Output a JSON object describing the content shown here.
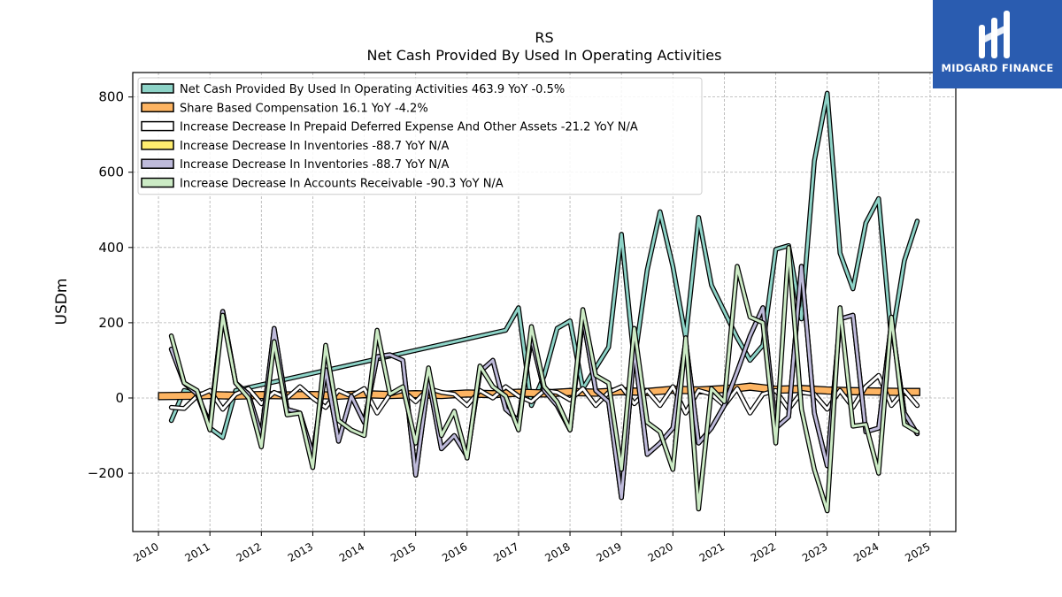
{
  "brand": {
    "name": "MIDGARD FINANCE",
    "logo_icon": "midgard-logo-icon",
    "background": "#2a5cb0"
  },
  "chart_data": {
    "type": "line",
    "title": "RS",
    "subtitle": "Net Cash Provided By Used In Operating Activities",
    "ylabel": "USDm",
    "xlabel": "",
    "xlim": [
      2009.5,
      2025.5
    ],
    "ylim": [
      -355,
      865
    ],
    "x_ticks": [
      2010,
      2011,
      2012,
      2013,
      2014,
      2015,
      2016,
      2017,
      2018,
      2019,
      2020,
      2021,
      2022,
      2023,
      2024,
      2025
    ],
    "x_tick_labels": [
      "2010",
      "2011",
      "2012",
      "2013",
      "2014",
      "2015",
      "2016",
      "2017",
      "2018",
      "2019",
      "2020",
      "2021",
      "2022",
      "2023",
      "2024",
      "2025"
    ],
    "y_ticks": [
      -200,
      0,
      200,
      400,
      600,
      800
    ],
    "y_tick_labels": [
      "−200",
      "0",
      "200",
      "400",
      "600",
      "800"
    ],
    "grid": true,
    "legend_position": "top-left",
    "series": [
      {
        "name": "Net Cash Provided By Used In Operating Activities",
        "legend_label": "Net Cash Provided By Used In Operating Activities  463.9 YoY -0.5%",
        "color": "#8dd3c7",
        "z": 1,
        "x": [
          2010.25,
          2010.5,
          2010.75,
          2011.0,
          2011.25,
          2011.5,
          2016.75,
          2017.0,
          2017.25,
          2017.5,
          2017.75,
          2018.0,
          2018.25,
          2018.5,
          2018.75,
          2019.0,
          2019.25,
          2019.5,
          2019.75,
          2020.0,
          2020.25,
          2020.5,
          2020.75,
          2021.0,
          2021.25,
          2021.5,
          2021.75,
          2022.0,
          2022.25,
          2022.5,
          2022.75,
          2023.0,
          2023.25,
          2023.5,
          2023.75,
          2024.0,
          2024.25,
          2024.5,
          2024.75
        ],
        "y": [
          -60,
          20,
          10,
          -80,
          -105,
          20,
          180,
          240,
          -20,
          60,
          185,
          205,
          25,
          80,
          135,
          435,
          95,
          340,
          495,
          350,
          160,
          480,
          300,
          230,
          160,
          100,
          140,
          395,
          405,
          210,
          630,
          810,
          385,
          290,
          465,
          530,
          155,
          365,
          470
        ]
      },
      {
        "name": "Share Based Compensation",
        "legend_label": "Share Based Compensation  16.1 YoY -4.2%",
        "color": "#fdb462",
        "z": 2,
        "band": true,
        "x": [
          2010.0,
          2010.75,
          2011.0,
          2011.5,
          2012.0,
          2012.5,
          2013.0,
          2013.5,
          2014.0,
          2014.5,
          2015.0,
          2015.5,
          2016.0,
          2016.5,
          2017.0,
          2017.5,
          2018.0,
          2018.5,
          2019.0,
          2019.5,
          2020.0,
          2020.5,
          2021.0,
          2021.25,
          2021.5,
          2021.75,
          2022.0,
          2022.5,
          2023.0,
          2023.5,
          2024.0,
          2024.5,
          2024.8
        ],
        "y": [
          5,
          6,
          8,
          6,
          8,
          7,
          8,
          6,
          10,
          8,
          10,
          8,
          12,
          10,
          14,
          12,
          16,
          14,
          18,
          16,
          22,
          20,
          24,
          26,
          30,
          26,
          22,
          24,
          20,
          18,
          17,
          16,
          16
        ]
      },
      {
        "name": "Increase Decrease In Prepaid Deferred Expense And Other Assets",
        "legend_label": "Increase Decrease In Prepaid Deferred Expense And Other Assets  -21.2 YoY N/A",
        "color": "#ffffff",
        "z": 3,
        "x": [
          2010.25,
          2010.5,
          2010.75,
          2011.0,
          2011.25,
          2011.5,
          2011.75,
          2012.0,
          2012.25,
          2012.5,
          2012.75,
          2013.0,
          2013.25,
          2013.5,
          2013.75,
          2014.0,
          2014.25,
          2014.5,
          2014.75,
          2015.0,
          2015.25,
          2015.5,
          2015.75,
          2016.0,
          2016.25,
          2016.5,
          2016.75,
          2017.0,
          2017.25,
          2017.5,
          2017.75,
          2018.0,
          2018.25,
          2018.5,
          2018.75,
          2019.0,
          2019.25,
          2019.5,
          2019.75,
          2020.0,
          2020.25,
          2020.5,
          2020.75,
          2021.0,
          2021.25,
          2021.5,
          2021.75,
          2022.0,
          2022.25,
          2022.5,
          2022.75,
          2023.0,
          2023.25,
          2023.5,
          2023.75,
          2024.0,
          2024.25,
          2024.5,
          2024.75
        ],
        "y": [
          -25,
          -28,
          5,
          20,
          -30,
          10,
          25,
          -15,
          15,
          0,
          30,
          0,
          -25,
          20,
          5,
          25,
          -40,
          10,
          20,
          -10,
          25,
          15,
          10,
          -20,
          20,
          0,
          30,
          5,
          -10,
          20,
          15,
          -5,
          25,
          -20,
          15,
          30,
          -15,
          20,
          -20,
          30,
          -40,
          20,
          10,
          -20,
          25,
          -40,
          10,
          20,
          -30,
          15,
          10,
          -30,
          20,
          -25,
          30,
          60,
          -20,
          20,
          -20
        ]
      },
      {
        "name": "Increase Decrease In Inventories",
        "legend_label": "Increase Decrease In Inventories  -88.7 YoY N/A",
        "color": "#ffed6f",
        "z": 4,
        "x": [
          2010.25,
          2010.5,
          2010.75,
          2011.0,
          2011.25,
          2011.5,
          2011.75,
          2012.0,
          2012.25,
          2012.5,
          2012.75,
          2013.0,
          2013.25,
          2013.5,
          2013.75,
          2014.0,
          2014.25,
          2014.5,
          2014.75,
          2015.0,
          2015.25,
          2015.5,
          2015.75,
          2016.0,
          2016.25,
          2016.5,
          2016.75,
          2017.0,
          2017.25,
          2017.5,
          2017.75,
          2018.0,
          2018.25,
          2018.5,
          2018.75,
          2019.0,
          2019.25,
          2019.5,
          2019.75,
          2020.0,
          2020.25,
          2020.5,
          2020.75,
          2021.0,
          2021.25,
          2021.5,
          2021.75,
          2022.0,
          2022.25,
          2022.5,
          2022.75,
          2023.0,
          2023.25,
          2023.5,
          2023.75,
          2024.0,
          2024.25,
          2024.5,
          2024.75
        ],
        "y": [
          130,
          40,
          10,
          -70,
          230,
          40,
          10,
          -100,
          185,
          -30,
          -40,
          -150,
          75,
          -115,
          5,
          -65,
          110,
          115,
          100,
          -205,
          50,
          -135,
          -100,
          -155,
          70,
          100,
          -30,
          -60,
          160,
          20,
          -20,
          -85,
          215,
          20,
          -10,
          -265,
          130,
          -150,
          -120,
          -80,
          150,
          -120,
          -80,
          -20,
          70,
          165,
          240,
          -80,
          -50,
          350,
          -40,
          -180,
          210,
          220,
          -90,
          -80,
          200,
          -40,
          -95
        ]
      },
      {
        "name": "Increase Decrease In Inventories",
        "legend_label": "Increase Decrease In Inventories  -88.7 YoY N/A",
        "color": "#bebada",
        "z": 5,
        "x": [
          2010.25,
          2010.5,
          2010.75,
          2011.0,
          2011.25,
          2011.5,
          2011.75,
          2012.0,
          2012.25,
          2012.5,
          2012.75,
          2013.0,
          2013.25,
          2013.5,
          2013.75,
          2014.0,
          2014.25,
          2014.5,
          2014.75,
          2015.0,
          2015.25,
          2015.5,
          2015.75,
          2016.0,
          2016.25,
          2016.5,
          2016.75,
          2017.0,
          2017.25,
          2017.5,
          2017.75,
          2018.0,
          2018.25,
          2018.5,
          2018.75,
          2019.0,
          2019.25,
          2019.5,
          2019.75,
          2020.0,
          2020.25,
          2020.5,
          2020.75,
          2021.0,
          2021.25,
          2021.5,
          2021.75,
          2022.0,
          2022.25,
          2022.5,
          2022.75,
          2023.0,
          2023.25,
          2023.5,
          2023.75,
          2024.0,
          2024.25,
          2024.5,
          2024.75
        ],
        "y": [
          130,
          40,
          10,
          -70,
          230,
          40,
          10,
          -100,
          185,
          -30,
          -40,
          -150,
          75,
          -115,
          5,
          -65,
          110,
          115,
          100,
          -205,
          50,
          -135,
          -100,
          -155,
          70,
          100,
          -30,
          -60,
          160,
          20,
          -20,
          -85,
          215,
          20,
          -10,
          -265,
          130,
          -150,
          -120,
          -80,
          150,
          -120,
          -80,
          -20,
          70,
          165,
          240,
          -80,
          -50,
          350,
          -40,
          -180,
          210,
          220,
          -90,
          -80,
          200,
          -40,
          -95
        ]
      },
      {
        "name": "Increase Decrease In Accounts Receivable",
        "legend_label": "Increase Decrease In Accounts Receivable  -90.3 YoY N/A",
        "color": "#ccebc5",
        "z": 6,
        "x": [
          2010.25,
          2010.5,
          2010.75,
          2011.0,
          2011.25,
          2011.5,
          2011.75,
          2012.0,
          2012.25,
          2012.5,
          2012.75,
          2013.0,
          2013.25,
          2013.5,
          2013.75,
          2014.0,
          2014.25,
          2014.5,
          2014.75,
          2015.0,
          2015.25,
          2015.5,
          2015.75,
          2016.0,
          2016.25,
          2016.5,
          2016.75,
          2017.0,
          2017.25,
          2017.5,
          2017.75,
          2018.0,
          2018.25,
          2018.5,
          2018.75,
          2019.0,
          2019.25,
          2019.5,
          2019.75,
          2020.0,
          2020.25,
          2020.5,
          2020.75,
          2021.0,
          2021.25,
          2021.5,
          2021.75,
          2022.0,
          2022.25,
          2022.5,
          2022.75,
          2023.0,
          2023.25,
          2023.5,
          2023.75,
          2024.0,
          2024.25,
          2024.5,
          2024.75
        ],
        "y": [
          165,
          40,
          20,
          -85,
          220,
          40,
          0,
          -130,
          150,
          -45,
          -40,
          -185,
          140,
          -60,
          -85,
          -100,
          180,
          10,
          30,
          -120,
          80,
          -100,
          -35,
          -160,
          85,
          30,
          5,
          -85,
          190,
          30,
          -10,
          -85,
          235,
          60,
          40,
          -190,
          185,
          -65,
          -90,
          -190,
          160,
          -295,
          25,
          -10,
          350,
          215,
          200,
          -120,
          400,
          -30,
          -190,
          -300,
          240,
          -75,
          -70,
          -200,
          215,
          -70,
          -90
        ]
      }
    ]
  }
}
